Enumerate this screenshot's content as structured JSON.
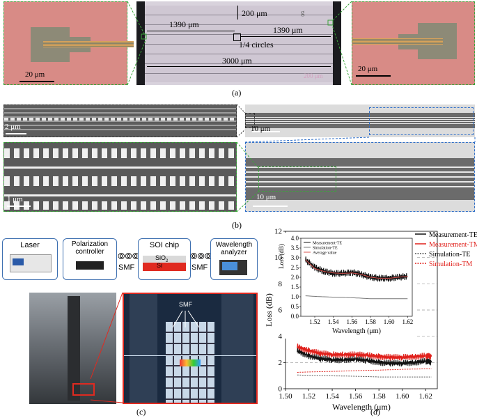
{
  "panel_a": {
    "caption": "(a)",
    "dim_top": "200 μm",
    "dim_left": "1390 μm",
    "dim_right": "1390 μm",
    "circles": "1/4 circles",
    "dim_total": "3000 μm",
    "scale_center": "200 μm",
    "scale_left": "20 μm",
    "scale_right": "20 μm",
    "mark_g": "g"
  },
  "panel_b": {
    "caption": "(b)",
    "scale_tl": "2 μm",
    "scale_tr": "10 μm",
    "scale_bl": "1 μm",
    "scale_br": "10 μm"
  },
  "panel_c": {
    "caption": "(c)",
    "boxes": [
      "Laser",
      "Polarization controller",
      "SOI chip",
      "Wavelength analyzer"
    ],
    "smf1": "SMF",
    "smf2": "SMF",
    "sio2": "SiO2",
    "si": "Si",
    "photo_smf": "SMF"
  },
  "panel_d": {
    "caption": "(d)",
    "legend_main": [
      "Measurement-TE",
      "Measurement-TM",
      "Simulation-TE",
      "Simulation-TM"
    ],
    "legend_inset": [
      "Measurement-TE",
      "Simulation-TE",
      "Average value"
    ],
    "colors": {
      "meas_te": "#111111",
      "meas_tm": "#e0201b",
      "sim_te": "#555555",
      "sim_tm": "#e0201b",
      "avg": "#d9534f"
    }
  },
  "chart_data": [
    {
      "type": "line",
      "xlabel": "Wavelength (μm)",
      "ylabel": "Loss (dB)",
      "xlim": [
        1.5,
        1.63
      ],
      "ylim": [
        0,
        12
      ],
      "xticks": [
        "1.50",
        "1.52",
        "1.54",
        "1.56",
        "1.58",
        "1.60",
        "1.62"
      ],
      "yticks": [
        "0",
        "2",
        "4",
        "6",
        "8",
        "10",
        "12"
      ],
      "grid": "dashed horizontal",
      "legend": "right",
      "x": [
        1.51,
        1.52,
        1.53,
        1.54,
        1.55,
        1.56,
        1.57,
        1.58,
        1.59,
        1.6,
        1.61,
        1.62,
        1.625
      ],
      "series": [
        {
          "name": "Measurement-TE",
          "values": [
            2.9,
            2.5,
            2.3,
            2.2,
            2.2,
            2.25,
            2.15,
            2.0,
            1.95,
            1.95,
            2.0,
            2.1,
            2.0
          ]
        },
        {
          "name": "Measurement-TM",
          "values": [
            3.2,
            2.9,
            2.7,
            2.6,
            2.6,
            2.6,
            2.55,
            2.45,
            2.4,
            2.4,
            2.45,
            2.5,
            2.45
          ]
        },
        {
          "name": "Simulation-TE",
          "values": [
            1.05,
            1.02,
            1.0,
            0.98,
            0.97,
            0.95,
            0.93,
            0.9,
            0.9,
            0.9,
            0.9,
            0.9,
            0.9
          ]
        },
        {
          "name": "Simulation-TM",
          "values": [
            1.25,
            1.28,
            1.3,
            1.32,
            1.35,
            1.38,
            1.4,
            1.42,
            1.45,
            1.48,
            1.5,
            1.52,
            1.52
          ]
        }
      ]
    },
    {
      "type": "line",
      "xlabel": "Wavelength (μm)",
      "ylabel": "Loss (dB)",
      "xlim": [
        1.505,
        1.625
      ],
      "ylim": [
        0,
        4
      ],
      "xticks": [
        "1.52",
        "1.54",
        "1.56",
        "1.58",
        "1.60",
        "1.62"
      ],
      "yticks": [
        "0.0",
        "0.5",
        "1.0",
        "1.5",
        "2.0",
        "2.5",
        "3.0",
        "3.5",
        "4.0"
      ],
      "legend": "top-left",
      "x": [
        1.51,
        1.52,
        1.53,
        1.54,
        1.55,
        1.56,
        1.57,
        1.58,
        1.59,
        1.6,
        1.61,
        1.62
      ],
      "series": [
        {
          "name": "Measurement-TE",
          "values": [
            2.9,
            2.5,
            2.3,
            2.2,
            2.2,
            2.25,
            2.15,
            2.0,
            1.95,
            1.95,
            2.0,
            2.05
          ]
        },
        {
          "name": "Simulation-TE",
          "values": [
            1.05,
            1.02,
            1.0,
            0.98,
            0.97,
            0.95,
            0.93,
            0.9,
            0.9,
            0.9,
            0.9,
            0.9
          ]
        },
        {
          "name": "Average value",
          "values": [
            2.9,
            2.45,
            2.3,
            2.22,
            2.2,
            2.22,
            2.15,
            2.0,
            1.95,
            1.95,
            2.0,
            2.05
          ]
        }
      ]
    }
  ]
}
